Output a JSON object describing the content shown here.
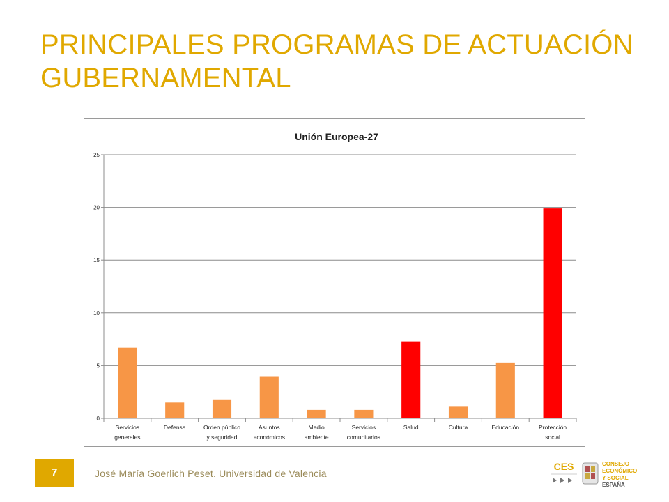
{
  "slide": {
    "title_line1": "PRINCIPALES PROGRAMAS DE ACTUACIÓN",
    "title_line2": "GUBERNAMENTAL"
  },
  "footer": {
    "page_number": "7",
    "author": "José María Goerlich Peset. Universidad de Valencia"
  },
  "logo": {
    "acronym": "CES",
    "line1": "CONSEJO",
    "line2": "ECONÓMICO",
    "line3": "Y SOCIAL",
    "line4": "ESPAÑA"
  },
  "colors": {
    "title": "#E0A800",
    "bar_default": "#F79646",
    "bar_highlight": "#FF0000",
    "footer_badge": "#E0A800"
  },
  "chart_data": {
    "type": "bar",
    "title": "Unión Europea-27",
    "xlabel": "",
    "ylabel": "",
    "ylim": [
      0,
      25
    ],
    "yticks": [
      "0",
      "5",
      "10",
      "15",
      "20",
      "25"
    ],
    "grid": true,
    "categories": [
      [
        "Servicios",
        "generales"
      ],
      [
        "Defensa"
      ],
      [
        "Orden público",
        "y seguridad"
      ],
      [
        "Asuntos",
        "económicos"
      ],
      [
        "Medio",
        "ambiente"
      ],
      [
        "Servicios",
        "comunitarios"
      ],
      [
        "Salud"
      ],
      [
        "Cultura"
      ],
      [
        "Educación"
      ],
      [
        "Protección",
        "social"
      ]
    ],
    "values": [
      6.7,
      1.5,
      1.8,
      4.0,
      0.8,
      0.8,
      7.3,
      1.1,
      5.3,
      19.9
    ],
    "highlight": [
      false,
      false,
      false,
      false,
      false,
      false,
      true,
      false,
      false,
      true
    ]
  }
}
